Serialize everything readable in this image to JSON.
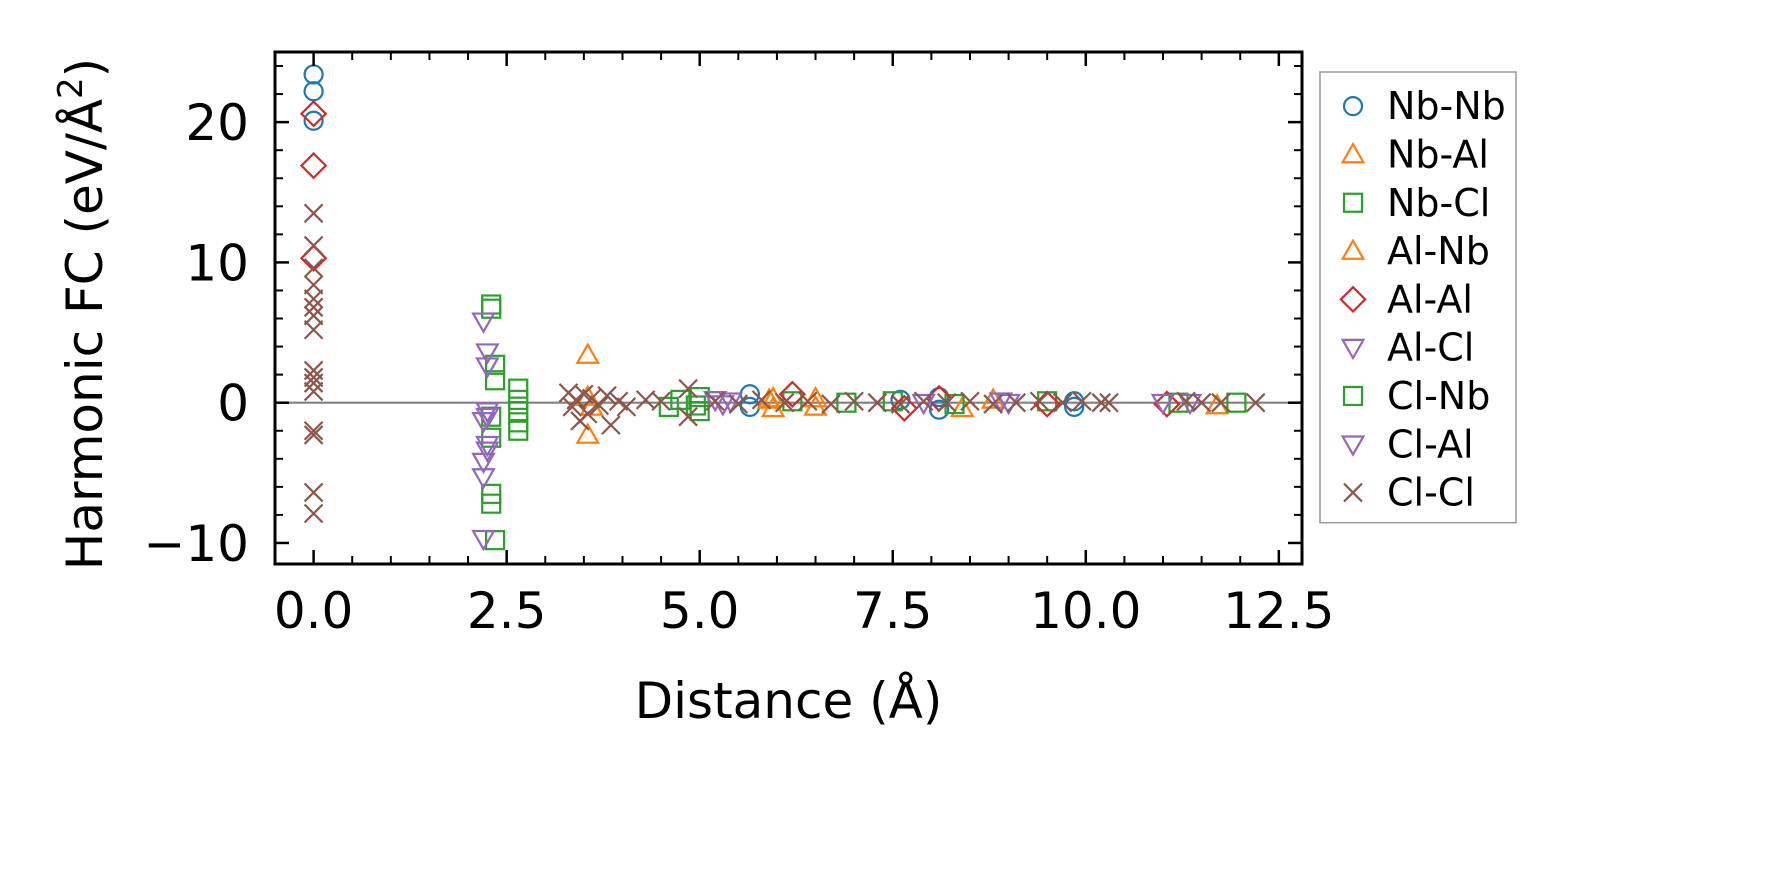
{
  "chart_data": {
    "type": "scatter",
    "xlabel": "Distance (Å)",
    "ylabel": "Harmonic FC (eV/Å²)",
    "ylabel_parts": {
      "main": "Harmonic FC (eV/Å",
      "sup": "2",
      "tail": ")"
    },
    "xlim": [
      -0.5,
      12.8
    ],
    "ylim": [
      -11.5,
      25
    ],
    "x_ticks": [
      0.0,
      2.5,
      5.0,
      7.5,
      10.0,
      12.5
    ],
    "x_tick_labels": [
      "0.0",
      "2.5",
      "5.0",
      "7.5",
      "10.0",
      "12.5"
    ],
    "y_ticks": [
      -10,
      0,
      10,
      20
    ],
    "y_tick_labels": [
      "−10",
      "0",
      "10",
      "20"
    ],
    "zero_line": true,
    "grid": false,
    "legend_position": "outside-right",
    "series": [
      {
        "name": "Nb-Nb",
        "marker": "circle",
        "color": "#1f77b4",
        "points": [
          [
            0,
            23.4
          ],
          [
            0,
            22.2
          ],
          [
            0,
            20.1
          ],
          [
            5.65,
            0.6
          ],
          [
            5.65,
            -0.3
          ],
          [
            7.6,
            0.2
          ],
          [
            8.1,
            -0.5
          ],
          [
            8.1,
            0.4
          ],
          [
            9.85,
            -0.3
          ],
          [
            9.85,
            0.1
          ]
        ]
      },
      {
        "name": "Nb-Al",
        "marker": "triangle-up",
        "color": "#ff7f0e",
        "points": [
          [
            3.55,
            3.4
          ],
          [
            3.55,
            -2.3
          ],
          [
            3.55,
            0.4
          ],
          [
            3.6,
            -0.3
          ],
          [
            5.95,
            0.3
          ],
          [
            5.95,
            -0.4
          ],
          [
            6.5,
            -0.3
          ],
          [
            8.4,
            -0.4
          ],
          [
            8.8,
            0.2
          ],
          [
            11.7,
            -0.2
          ]
        ]
      },
      {
        "name": "Nb-Cl",
        "marker": "square",
        "color": "#2ca02c",
        "points": [
          [
            2.3,
            7.0
          ],
          [
            2.3,
            6.7
          ],
          [
            2.35,
            2.7
          ],
          [
            2.35,
            1.6
          ],
          [
            2.3,
            -1.0
          ],
          [
            2.3,
            -2.5
          ],
          [
            2.3,
            -6.5
          ],
          [
            2.3,
            -7.2
          ],
          [
            2.35,
            -9.8
          ],
          [
            2.65,
            1.0
          ],
          [
            2.65,
            0.2
          ],
          [
            2.65,
            -0.6
          ],
          [
            2.65,
            -1.4
          ],
          [
            2.65,
            -2.0
          ],
          [
            4.6,
            -0.3
          ],
          [
            4.75,
            0.2
          ],
          [
            5.0,
            0.4
          ],
          [
            5.0,
            -0.6
          ],
          [
            6.2,
            0.1
          ],
          [
            7.5,
            0.1
          ],
          [
            8.3,
            -0.1
          ],
          [
            9.5,
            0.1
          ],
          [
            11.2,
            0.0
          ]
        ]
      },
      {
        "name": "Al-Nb",
        "marker": "triangle-up",
        "color": "#ff7f0e",
        "points": [
          [
            5.9,
            0.2
          ],
          [
            6.5,
            0.3
          ]
        ]
      },
      {
        "name": "Al-Al",
        "marker": "diamond",
        "color": "#d62728",
        "points": [
          [
            0,
            20.6
          ],
          [
            0,
            16.9
          ],
          [
            0,
            10.3
          ],
          [
            6.2,
            0.6
          ],
          [
            7.65,
            -0.4
          ],
          [
            8.1,
            0.3
          ],
          [
            9.5,
            -0.1
          ],
          [
            11.05,
            -0.1
          ]
        ]
      },
      {
        "name": "Al-Cl",
        "marker": "triangle-down",
        "color": "#9467bd",
        "points": [
          [
            2.2,
            5.8
          ],
          [
            2.25,
            3.6
          ],
          [
            2.25,
            2.6
          ],
          [
            2.25,
            -0.6
          ],
          [
            2.2,
            -1.3
          ],
          [
            2.25,
            -3.0
          ],
          [
            2.2,
            -4.2
          ],
          [
            2.2,
            -5.3
          ],
          [
            2.2,
            -9.7
          ],
          [
            5.2,
            0.2
          ],
          [
            5.4,
            0.1
          ],
          [
            7.9,
            0.0
          ],
          [
            9.0,
            0.0
          ],
          [
            11.0,
            0.0
          ],
          [
            11.35,
            0.0
          ]
        ]
      },
      {
        "name": "Cl-Nb",
        "marker": "square",
        "color": "#2ca02c",
        "points": [
          [
            4.95,
            -0.2
          ],
          [
            6.9,
            0.0
          ],
          [
            11.95,
            0.0
          ]
        ]
      },
      {
        "name": "Cl-Al",
        "marker": "triangle-down",
        "color": "#9467bd",
        "points": [
          [
            2.25,
            -1.0
          ],
          [
            2.25,
            -3.4
          ],
          [
            5.3,
            -0.1
          ],
          [
            8.9,
            0.1
          ]
        ]
      },
      {
        "name": "Cl-Cl",
        "marker": "x",
        "color": "#8c564b",
        "points": [
          [
            0,
            13.5
          ],
          [
            0,
            11.2
          ],
          [
            0,
            9.6
          ],
          [
            0,
            8.4
          ],
          [
            0,
            7.4
          ],
          [
            0,
            6.8
          ],
          [
            0,
            6.2
          ],
          [
            0,
            5.2
          ],
          [
            0,
            2.3
          ],
          [
            0,
            1.8
          ],
          [
            0,
            1.4
          ],
          [
            0,
            0.8
          ],
          [
            0,
            -2.0
          ],
          [
            0,
            -2.3
          ],
          [
            0,
            -6.4
          ],
          [
            0,
            -7.9
          ],
          [
            3.3,
            0.7
          ],
          [
            3.35,
            -0.3
          ],
          [
            3.4,
            0.2
          ],
          [
            3.45,
            -1.3
          ],
          [
            3.5,
            0.6
          ],
          [
            3.55,
            -0.8
          ],
          [
            3.6,
            0.3
          ],
          [
            3.7,
            -0.2
          ],
          [
            3.8,
            0.5
          ],
          [
            3.85,
            -1.6
          ],
          [
            3.95,
            0.1
          ],
          [
            4.05,
            -0.3
          ],
          [
            4.3,
            0.2
          ],
          [
            4.5,
            0.1
          ],
          [
            4.85,
            1.0
          ],
          [
            4.85,
            -1.0
          ],
          [
            5.2,
            0.1
          ],
          [
            5.5,
            -0.1
          ],
          [
            5.8,
            0.2
          ],
          [
            6.1,
            0.0
          ],
          [
            6.4,
            0.1
          ],
          [
            6.7,
            -0.1
          ],
          [
            7.0,
            0.1
          ],
          [
            7.3,
            0.0
          ],
          [
            7.6,
            -0.1
          ],
          [
            7.9,
            0.1
          ],
          [
            8.2,
            0.0
          ],
          [
            8.5,
            0.1
          ],
          [
            8.8,
            -0.1
          ],
          [
            9.1,
            0.0
          ],
          [
            9.4,
            0.1
          ],
          [
            9.7,
            0.0
          ],
          [
            9.95,
            0.1
          ],
          [
            10.2,
            0.0
          ],
          [
            10.3,
            0.0
          ],
          [
            11.3,
            0.1
          ],
          [
            11.5,
            0.0
          ],
          [
            11.75,
            0.0
          ],
          [
            12.2,
            0.0
          ]
        ]
      }
    ]
  }
}
